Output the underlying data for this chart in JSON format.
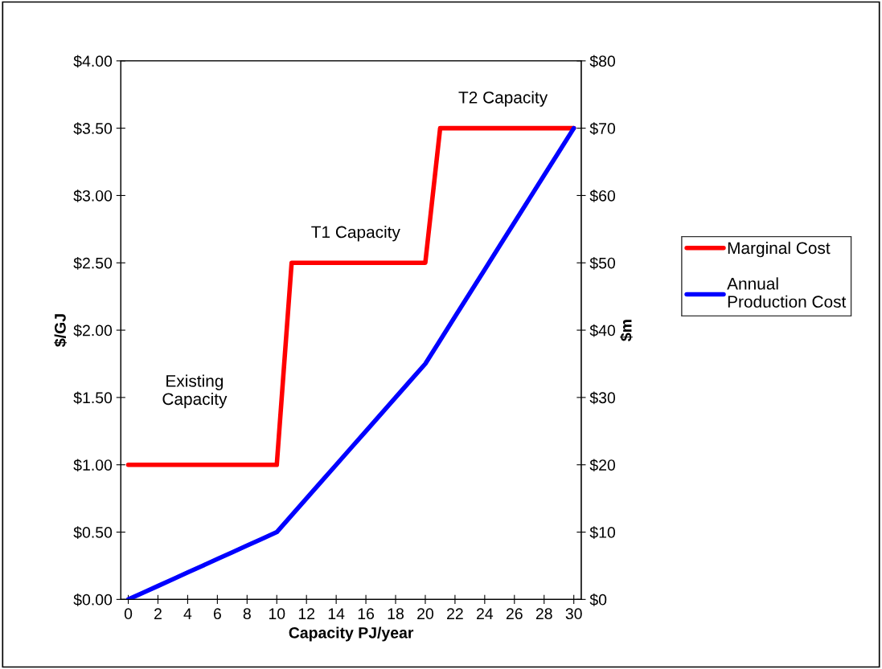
{
  "chart_data": {
    "type": "line",
    "xlabel": "Capacity PJ/year",
    "ylabel": "$/GJ",
    "y2label": "$m",
    "xlim": [
      -0.5,
      30.5
    ],
    "xticks": [
      0,
      2,
      4,
      6,
      8,
      10,
      12,
      14,
      16,
      18,
      20,
      22,
      24,
      26,
      28,
      30
    ],
    "ylim": [
      0,
      4
    ],
    "yticks": [
      {
        "value": 0,
        "label": "$0.00"
      },
      {
        "value": 0.5,
        "label": "$0.50"
      },
      {
        "value": 1,
        "label": "$1.00"
      },
      {
        "value": 1.5,
        "label": "$1.50"
      },
      {
        "value": 2,
        "label": "$2.00"
      },
      {
        "value": 2.5,
        "label": "$2.50"
      },
      {
        "value": 3,
        "label": "$3.00"
      },
      {
        "value": 3.5,
        "label": "$3.50"
      },
      {
        "value": 4,
        "label": "$4.00"
      }
    ],
    "y2lim": [
      0,
      80
    ],
    "y2ticks": [
      {
        "value": 0,
        "label": "$0"
      },
      {
        "value": 10,
        "label": "$10"
      },
      {
        "value": 20,
        "label": "$20"
      },
      {
        "value": 30,
        "label": "$30"
      },
      {
        "value": 40,
        "label": "$40"
      },
      {
        "value": 50,
        "label": "$50"
      },
      {
        "value": 60,
        "label": "$60"
      },
      {
        "value": 70,
        "label": "$70"
      },
      {
        "value": 80,
        "label": "$80"
      }
    ],
    "grid": false,
    "legend": "right",
    "marker": "none",
    "line_style": "solid",
    "series": [
      {
        "name": "Marginal Cost",
        "color": "#ff0000",
        "x": [
          0,
          10,
          11,
          20,
          21,
          30
        ],
        "values": [
          1,
          1,
          2.5,
          2.5,
          3.5,
          3.5
        ]
      },
      {
        "name": "Annual\nProduction Cost",
        "color": "#0000ff",
        "axis": "y2",
        "x": [
          0,
          1,
          2,
          3,
          4,
          5,
          6,
          7,
          8,
          9,
          10,
          11,
          12,
          13,
          14,
          15,
          16,
          17,
          18,
          19,
          20,
          21,
          22,
          23,
          24,
          25,
          26,
          27,
          28,
          29,
          30
        ],
        "values": [
          0,
          1,
          2,
          3,
          4,
          5,
          6,
          7,
          8,
          9,
          10,
          12.5,
          15,
          17.5,
          20,
          22.5,
          25,
          27.5,
          30,
          32.5,
          35,
          38.5,
          42,
          45.5,
          49,
          52.5,
          56,
          59.5,
          63,
          66.5,
          70
        ]
      }
    ],
    "annotations": [
      "Existing\nCapacity",
      "T1 Capacity",
      "T2 Capacity"
    ]
  }
}
